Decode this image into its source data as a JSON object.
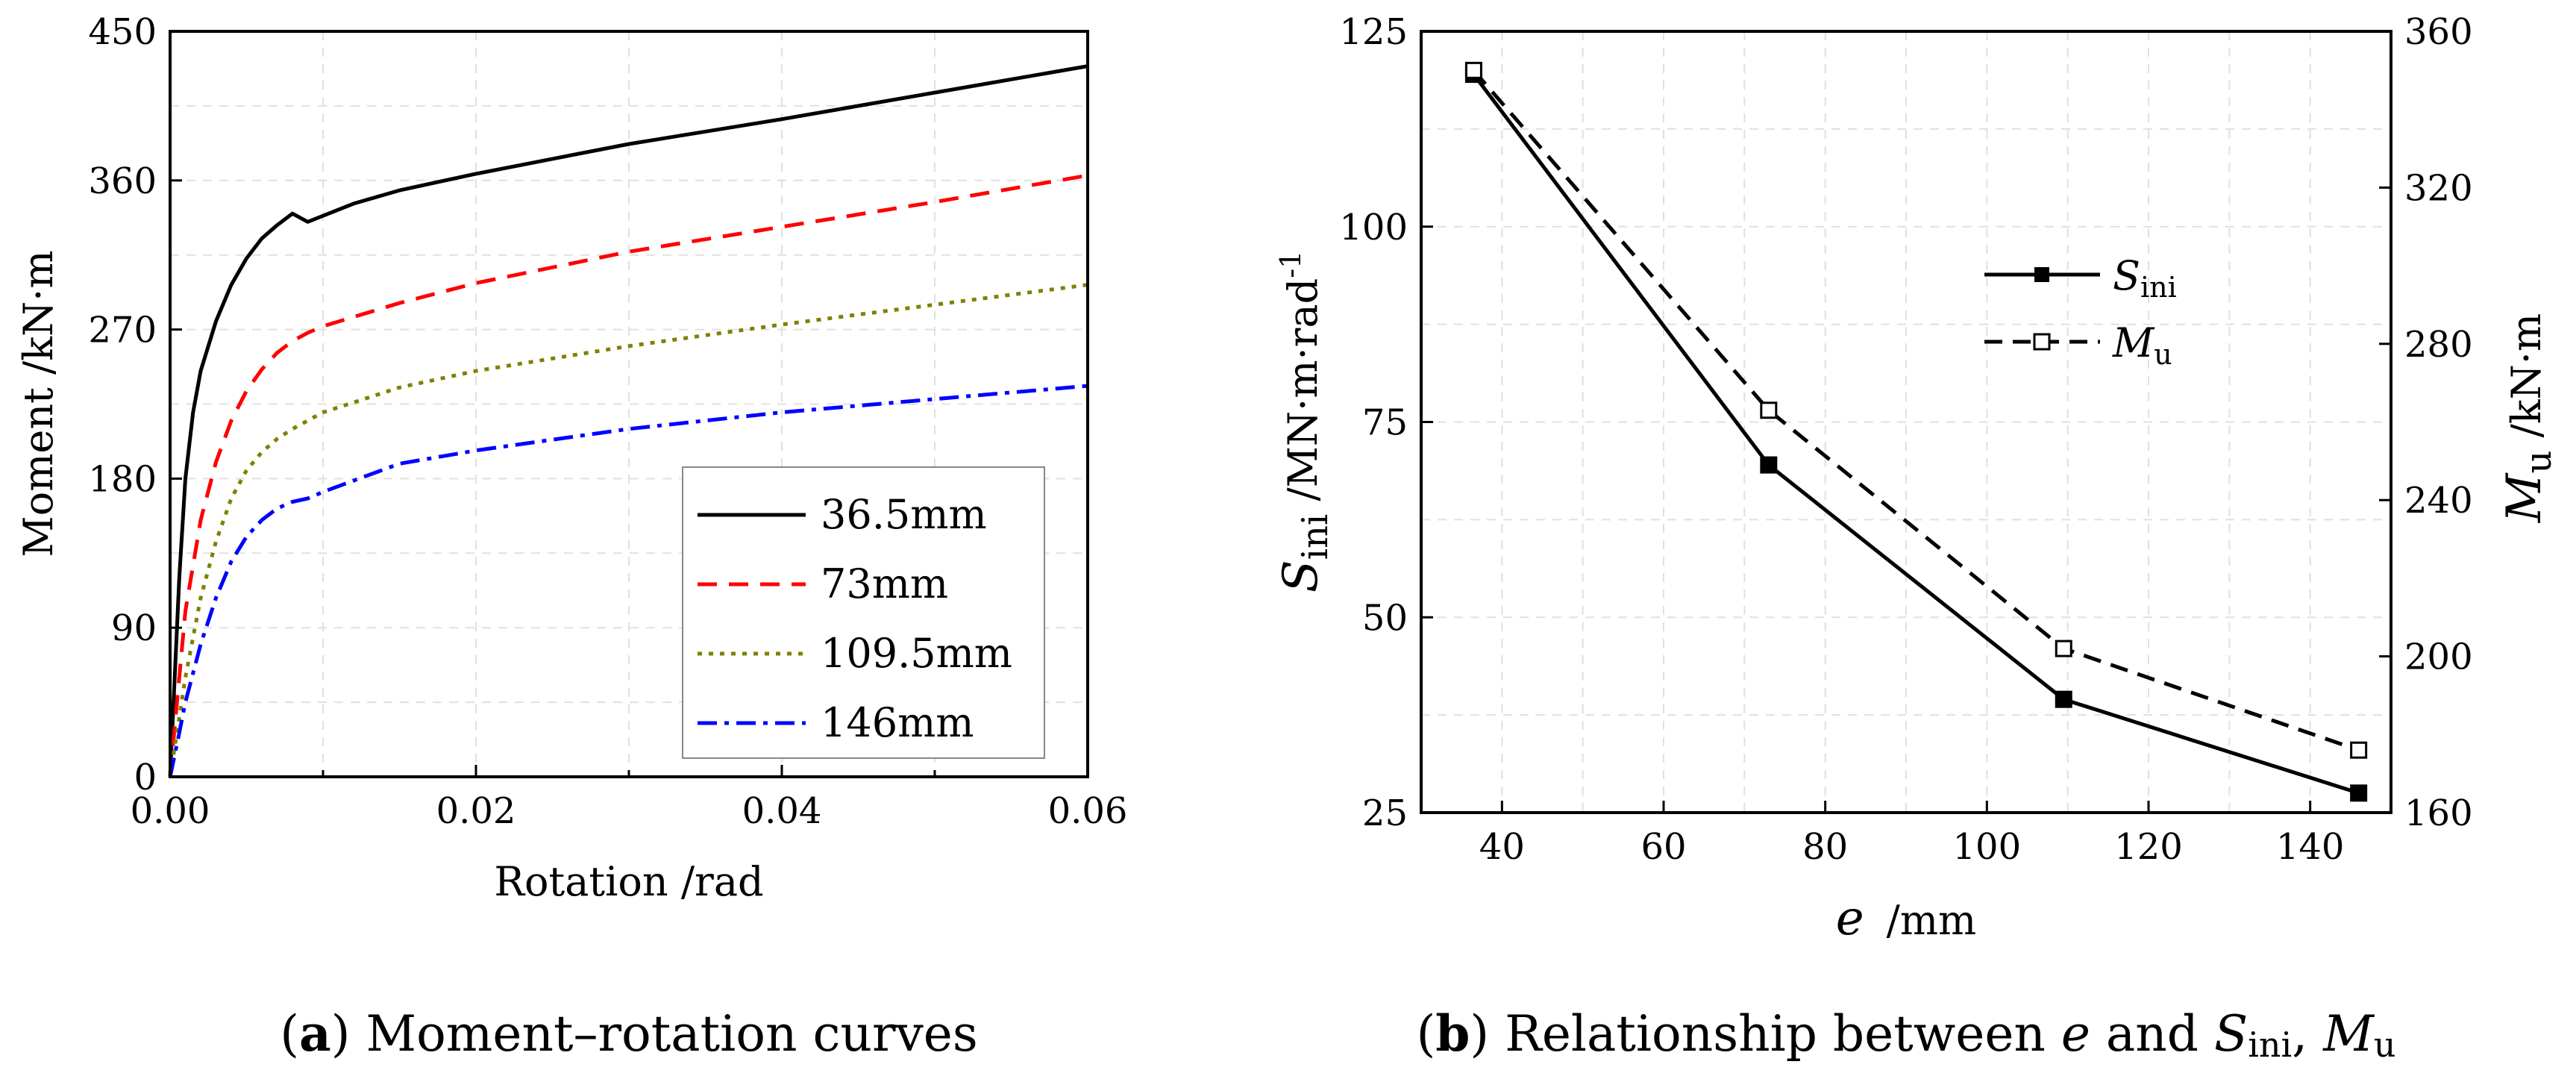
{
  "chart_data": [
    {
      "type": "line",
      "panel": "a",
      "title": "",
      "xlabel": "Rotation /rad",
      "ylabel": "Moment /kN·m",
      "xlim": [
        0,
        0.06
      ],
      "ylim": [
        0,
        450
      ],
      "xticks": [
        "0.00",
        "0.02",
        "0.04",
        "0.06"
      ],
      "yticks": [
        "0",
        "90",
        "180",
        "270",
        "360",
        "450"
      ],
      "grid": true,
      "legend_position": "bottom-right",
      "series": [
        {
          "name": "36.5mm",
          "color": "#000000",
          "dash": "solid",
          "points": [
            [
              0,
              0
            ],
            [
              0.0003,
              60
            ],
            [
              0.0006,
              120
            ],
            [
              0.001,
              180
            ],
            [
              0.0015,
              220
            ],
            [
              0.002,
              245
            ],
            [
              0.003,
              275
            ],
            [
              0.004,
              297
            ],
            [
              0.005,
              313
            ],
            [
              0.006,
              325
            ],
            [
              0.007,
              333
            ],
            [
              0.008,
              340
            ],
            [
              0.009,
              335
            ],
            [
              0.012,
              346
            ],
            [
              0.015,
              354
            ],
            [
              0.02,
              364
            ],
            [
              0.025,
              373
            ],
            [
              0.03,
              382
            ],
            [
              0.04,
              397
            ],
            [
              0.05,
              413
            ],
            [
              0.06,
              429
            ]
          ]
        },
        {
          "name": "73mm",
          "color": "#ff0000",
          "dash": "dashed",
          "points": [
            [
              0,
              0
            ],
            [
              0.0004,
              40
            ],
            [
              0.001,
              100
            ],
            [
              0.002,
              155
            ],
            [
              0.003,
              190
            ],
            [
              0.004,
              215
            ],
            [
              0.005,
              233
            ],
            [
              0.006,
              246
            ],
            [
              0.007,
              256
            ],
            [
              0.008,
              263
            ],
            [
              0.009,
              268
            ],
            [
              0.01,
              272
            ],
            [
              0.015,
              286
            ],
            [
              0.02,
              298
            ],
            [
              0.03,
              317
            ],
            [
              0.04,
              332
            ],
            [
              0.05,
              347
            ],
            [
              0.06,
              363
            ]
          ]
        },
        {
          "name": "109.5mm",
          "color": "#808000",
          "dash": "dotted",
          "points": [
            [
              0,
              0
            ],
            [
              0.0005,
              30
            ],
            [
              0.001,
              60
            ],
            [
              0.002,
              108
            ],
            [
              0.003,
              142
            ],
            [
              0.004,
              168
            ],
            [
              0.005,
              185
            ],
            [
              0.006,
              196
            ],
            [
              0.007,
              204
            ],
            [
              0.008,
              210
            ],
            [
              0.009,
              215
            ],
            [
              0.01,
              220
            ],
            [
              0.015,
              235
            ],
            [
              0.02,
              245
            ],
            [
              0.03,
              260
            ],
            [
              0.04,
              273
            ],
            [
              0.05,
              285
            ],
            [
              0.06,
              297
            ]
          ]
        },
        {
          "name": "146mm",
          "color": "#0000ff",
          "dash": "dashdot",
          "points": [
            [
              0,
              0
            ],
            [
              0.0005,
              22
            ],
            [
              0.001,
              45
            ],
            [
              0.002,
              80
            ],
            [
              0.003,
              108
            ],
            [
              0.004,
              130
            ],
            [
              0.005,
              145
            ],
            [
              0.006,
              155
            ],
            [
              0.007,
              162
            ],
            [
              0.008,
              166
            ],
            [
              0.009,
              168
            ],
            [
              0.01,
              172
            ],
            [
              0.015,
              189
            ],
            [
              0.02,
              197
            ],
            [
              0.03,
              210
            ],
            [
              0.04,
              220
            ],
            [
              0.05,
              228
            ],
            [
              0.06,
              236
            ]
          ]
        }
      ]
    },
    {
      "type": "line",
      "panel": "b",
      "title": "",
      "xlabel": "e /mm",
      "ylabel_left": "S_ini /MN·m·rad^-1",
      "ylabel_right": "M_u /kN·m",
      "xlim": [
        30,
        150
      ],
      "ylim_left": [
        25,
        125
      ],
      "ylim_right": [
        160,
        360
      ],
      "xticks": [
        "40",
        "60",
        "80",
        "100",
        "120",
        "140"
      ],
      "yticks_left": [
        "25",
        "50",
        "75",
        "100",
        "125"
      ],
      "yticks_right": [
        "160",
        "200",
        "240",
        "280",
        "320",
        "360"
      ],
      "grid": true,
      "legend_position": "top-right",
      "series": [
        {
          "name": "S_ini",
          "axis": "left",
          "color": "#000000",
          "dash": "solid",
          "marker": "filled-square",
          "x": [
            36.5,
            73,
            109.5,
            146
          ],
          "y": [
            119.5,
            69.5,
            39.5,
            27.5
          ]
        },
        {
          "name": "M_u",
          "axis": "right",
          "color": "#000000",
          "dash": "dashed",
          "marker": "open-square",
          "x": [
            36.5,
            73,
            109.5,
            146
          ],
          "y": [
            350,
            263,
            202,
            176
          ]
        }
      ]
    }
  ],
  "panel_a": {
    "xlabel": "Rotation /rad",
    "ylabel": "Moment /kN·m",
    "legend": [
      "36.5mm",
      "73mm",
      "109.5mm",
      "146mm"
    ]
  },
  "panel_b": {
    "xlabel_var": "e",
    "xlabel_unit": "/mm",
    "ylabel_left_var": "S",
    "ylabel_left_sub": "ini",
    "ylabel_left_unit": " /MN·m·rad",
    "ylabel_left_sup": "-1",
    "ylabel_right_var": "M",
    "ylabel_right_sub": "u",
    "ylabel_right_unit": " /kN·m",
    "legend_s_var": "S",
    "legend_s_sub": "ini",
    "legend_m_var": "M",
    "legend_m_sub": "u"
  },
  "captions": {
    "a_label": "a",
    "a_text": " Moment–rotation curves",
    "b_label": "b",
    "b_text_1": " Relationship between ",
    "b_e": "e",
    "b_and": " and ",
    "b_s": "S",
    "b_s_sub": "ini",
    "b_comma": ", ",
    "b_m": "M",
    "b_m_sub": "u"
  }
}
